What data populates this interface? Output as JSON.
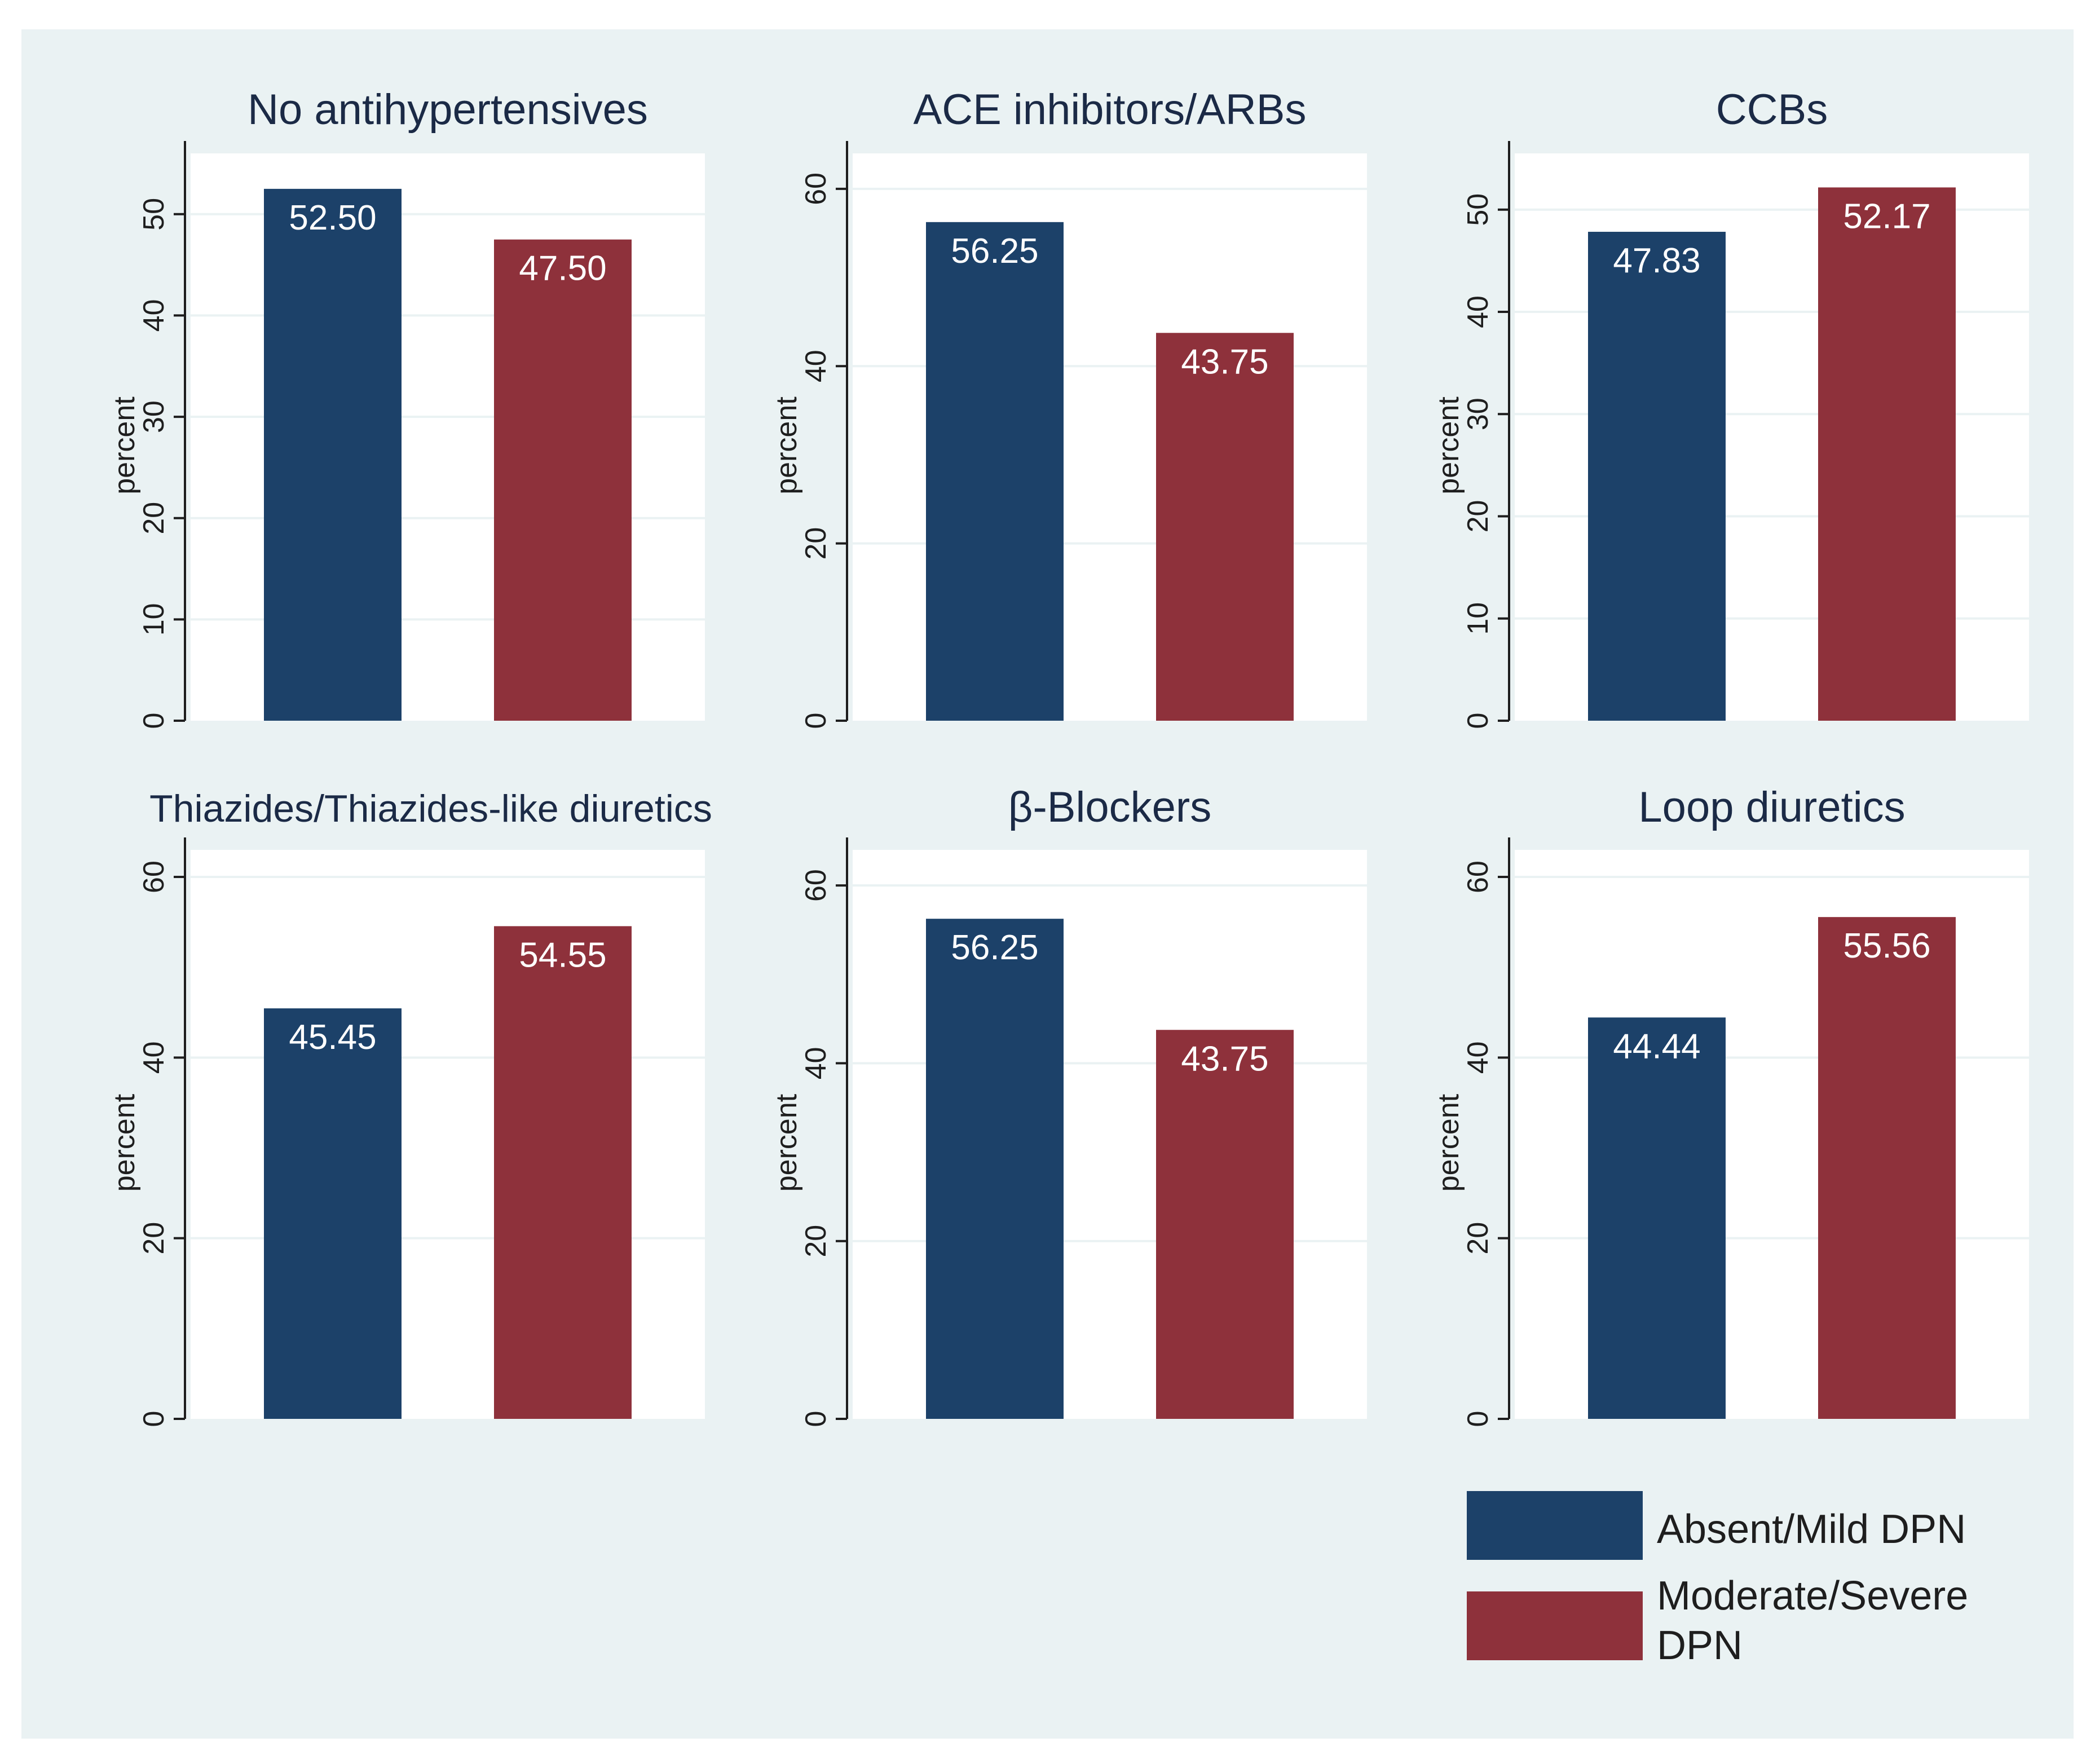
{
  "chart_data": [
    {
      "type": "bar",
      "title": "No antihypertensives",
      "ylabel": "percent",
      "ylim": [
        0,
        56
      ],
      "yticks": [
        0,
        10,
        20,
        30,
        40,
        50
      ],
      "categories": [
        "Absent/Mild DPN",
        "Moderate/Severe DPN"
      ],
      "values": [
        52.5,
        47.5
      ],
      "labels": [
        "52.50",
        "47.50"
      ]
    },
    {
      "type": "bar",
      "title": "ACE inhibitors/ARBs",
      "ylabel": "percent",
      "ylim": [
        0,
        64
      ],
      "yticks": [
        0,
        20,
        40,
        60
      ],
      "categories": [
        "Absent/Mild DPN",
        "Moderate/Severe DPN"
      ],
      "values": [
        56.25,
        43.75
      ],
      "labels": [
        "56.25",
        "43.75"
      ]
    },
    {
      "type": "bar",
      "title": "CCBs",
      "ylabel": "percent",
      "ylim": [
        0,
        55.5
      ],
      "yticks": [
        0,
        10,
        20,
        30,
        40,
        50
      ],
      "categories": [
        "Absent/Mild DPN",
        "Moderate/Severe DPN"
      ],
      "values": [
        47.83,
        52.17
      ],
      "labels": [
        "47.83",
        "52.17"
      ]
    },
    {
      "type": "bar",
      "title": "Thiazides/Thiazides-like diuretics",
      "ylabel": "percent",
      "ylim": [
        0,
        63
      ],
      "yticks": [
        0,
        20,
        40,
        60
      ],
      "categories": [
        "Absent/Mild DPN",
        "Moderate/Severe DPN"
      ],
      "values": [
        45.45,
        54.55
      ],
      "labels": [
        "45.45",
        "54.55"
      ]
    },
    {
      "type": "bar",
      "title": "β-Blockers",
      "ylabel": "percent",
      "ylim": [
        0,
        64
      ],
      "yticks": [
        0,
        20,
        40,
        60
      ],
      "categories": [
        "Absent/Mild DPN",
        "Moderate/Severe DPN"
      ],
      "values": [
        56.25,
        43.75
      ],
      "labels": [
        "56.25",
        "43.75"
      ]
    },
    {
      "type": "bar",
      "title": "Loop diuretics",
      "ylabel": "percent",
      "ylim": [
        0,
        63
      ],
      "yticks": [
        0,
        20,
        40,
        60
      ],
      "categories": [
        "Absent/Mild DPN",
        "Moderate/Severe DPN"
      ],
      "values": [
        44.44,
        55.56
      ],
      "labels": [
        "44.44",
        "55.56"
      ]
    }
  ],
  "legend": {
    "items": [
      {
        "lines": [
          "Absent/Mild DPN"
        ],
        "color": "#1c4169"
      },
      {
        "lines": [
          "Moderate/Severe",
          "DPN"
        ],
        "color": "#8e313b"
      }
    ]
  },
  "colors": {
    "series": [
      "#1c4169",
      "#8e313b"
    ],
    "background": "#eaf2f3",
    "plot": "#ffffff",
    "grid": "#eaf2f3",
    "axis": "#1e1e1e"
  }
}
